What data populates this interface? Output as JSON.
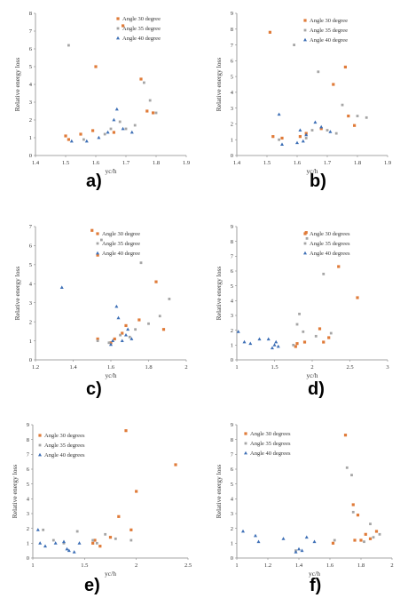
{
  "colors": {
    "s30": "#e07b39",
    "s35": "#a5a5a5",
    "s40": "#3d6fb6",
    "axis": "#888888"
  },
  "chart_data": [
    {
      "panel_label": "a)",
      "type": "scatter",
      "xlabel": "yc/h",
      "ylabel": "Relative energy loss",
      "xlim": [
        1.4,
        1.9
      ],
      "ylim": [
        0,
        8
      ],
      "xticks": [
        "1.4",
        "1.5",
        "1.6",
        "1.7",
        "1.8",
        "1.9"
      ],
      "yticks": [
        "0",
        "1",
        "2",
        "3",
        "4",
        "5",
        "6",
        "7",
        "8"
      ],
      "legend": [
        "Angle 30 degree",
        "Angle 35 degree",
        "Angle 40 degree"
      ],
      "series": [
        {
          "name": "Angle 30 degree",
          "points": [
            [
              1.5,
              1.1
            ],
            [
              1.51,
              0.9
            ],
            [
              1.55,
              1.2
            ],
            [
              1.59,
              1.4
            ],
            [
              1.6,
              5.0
            ],
            [
              1.66,
              1.3
            ],
            [
              1.69,
              7.3
            ],
            [
              1.75,
              4.3
            ],
            [
              1.77,
              2.5
            ],
            [
              1.79,
              2.4
            ]
          ]
        },
        {
          "name": "Angle 35 degree",
          "points": [
            [
              1.51,
              6.2
            ],
            [
              1.56,
              0.9
            ],
            [
              1.63,
              1.2
            ],
            [
              1.65,
              1.5
            ],
            [
              1.68,
              1.9
            ],
            [
              1.7,
              1.5
            ],
            [
              1.73,
              1.7
            ],
            [
              1.76,
              4.1
            ],
            [
              1.78,
              3.1
            ],
            [
              1.8,
              2.4
            ]
          ]
        },
        {
          "name": "Angle 40 degree",
          "points": [
            [
              1.52,
              0.8
            ],
            [
              1.57,
              0.8
            ],
            [
              1.61,
              1.0
            ],
            [
              1.64,
              1.3
            ],
            [
              1.66,
              2.0
            ],
            [
              1.67,
              2.6
            ],
            [
              1.69,
              1.5
            ],
            [
              1.72,
              1.3
            ]
          ]
        }
      ]
    },
    {
      "panel_label": "b)",
      "type": "scatter",
      "xlabel": "yc/h",
      "ylabel": "Relative energy loss",
      "xlim": [
        1.4,
        1.9
      ],
      "ylim": [
        0,
        9
      ],
      "xticks": [
        "1.4",
        "1.5",
        "1.6",
        "1.7",
        "1.8",
        "1.9"
      ],
      "yticks": [
        "0",
        "1",
        "2",
        "3",
        "4",
        "5",
        "6",
        "7",
        "8",
        "9"
      ],
      "legend": [
        "Angle 30 degree",
        "Angle 35 degree",
        "Angle 40 degree"
      ],
      "series": [
        {
          "name": "Angle 30 degree",
          "points": [
            [
              1.51,
              7.8
            ],
            [
              1.52,
              1.2
            ],
            [
              1.55,
              1.1
            ],
            [
              1.61,
              1.2
            ],
            [
              1.63,
              1.4
            ],
            [
              1.68,
              1.7
            ],
            [
              1.72,
              4.5
            ],
            [
              1.76,
              5.6
            ],
            [
              1.77,
              2.5
            ],
            [
              1.79,
              1.9
            ]
          ]
        },
        {
          "name": "Angle 35 degree",
          "points": [
            [
              1.54,
              1.0
            ],
            [
              1.59,
              7.0
            ],
            [
              1.63,
              1.1
            ],
            [
              1.65,
              1.6
            ],
            [
              1.67,
              5.3
            ],
            [
              1.7,
              1.6
            ],
            [
              1.73,
              1.4
            ],
            [
              1.75,
              3.2
            ],
            [
              1.8,
              2.5
            ],
            [
              1.83,
              2.4
            ]
          ]
        },
        {
          "name": "Angle 40 degree",
          "points": [
            [
              1.54,
              2.6
            ],
            [
              1.55,
              0.7
            ],
            [
              1.6,
              0.8
            ],
            [
              1.61,
              1.6
            ],
            [
              1.62,
              0.9
            ],
            [
              1.63,
              1.3
            ],
            [
              1.66,
              2.1
            ],
            [
              1.68,
              1.8
            ],
            [
              1.71,
              1.5
            ]
          ]
        }
      ]
    },
    {
      "panel_label": "c)",
      "type": "scatter",
      "xlabel": "yc/h",
      "ylabel": "Relative energy loss",
      "xlim": [
        1.2,
        2.0
      ],
      "ylim": [
        0,
        7
      ],
      "xticks": [
        "1.2",
        "1.4",
        "1.6",
        "1.8",
        "2"
      ],
      "yticks": [
        "0",
        "1",
        "2",
        "3",
        "4",
        "5",
        "6",
        "7"
      ],
      "legend": [
        "Angle 30 degree",
        "Angle 35 degree",
        "Angle 40 degree"
      ],
      "series": [
        {
          "name": "Angle 30 degree",
          "points": [
            [
              1.5,
              6.8
            ],
            [
              1.53,
              5.5
            ],
            [
              1.53,
              1.1
            ],
            [
              1.6,
              0.9
            ],
            [
              1.62,
              1.1
            ],
            [
              1.66,
              1.4
            ],
            [
              1.68,
              1.8
            ],
            [
              1.75,
              2.1
            ],
            [
              1.84,
              4.1
            ],
            [
              1.88,
              1.6
            ]
          ]
        },
        {
          "name": "Angle 35 degree",
          "points": [
            [
              1.53,
              1.0
            ],
            [
              1.55,
              6.3
            ],
            [
              1.59,
              0.9
            ],
            [
              1.65,
              1.3
            ],
            [
              1.7,
              1.2
            ],
            [
              1.73,
              1.6
            ],
            [
              1.76,
              5.1
            ],
            [
              1.8,
              1.9
            ],
            [
              1.86,
              2.3
            ],
            [
              1.91,
              3.2
            ]
          ]
        },
        {
          "name": "Angle 40 degree",
          "points": [
            [
              1.34,
              3.8
            ],
            [
              1.6,
              0.8
            ],
            [
              1.61,
              1.0
            ],
            [
              1.63,
              2.8
            ],
            [
              1.64,
              2.2
            ],
            [
              1.66,
              1.0
            ],
            [
              1.68,
              1.3
            ],
            [
              1.69,
              1.6
            ],
            [
              1.71,
              1.1
            ]
          ]
        }
      ]
    },
    {
      "panel_label": "d)",
      "type": "scatter",
      "xlabel": "yc/h",
      "ylabel": "Relative energy loss",
      "xlim": [
        1,
        3
      ],
      "ylim": [
        0,
        9
      ],
      "xticks": [
        "1",
        "1.5",
        "2",
        "2.5",
        "3"
      ],
      "yticks": [
        "0",
        "1",
        "2",
        "3",
        "4",
        "5",
        "6",
        "7",
        "8",
        "9"
      ],
      "legend": [
        "Angle 30 degrees",
        "Angle 35 degrees",
        "Angle 40 degrees"
      ],
      "series": [
        {
          "name": "Angle 30 degrees",
          "points": [
            [
              1.78,
              0.9
            ],
            [
              1.8,
              1.1
            ],
            [
              1.9,
              1.2
            ],
            [
              1.92,
              8.6
            ],
            [
              2.1,
              2.1
            ],
            [
              2.15,
              1.2
            ],
            [
              2.22,
              1.5
            ],
            [
              2.35,
              6.3
            ],
            [
              2.6,
              4.2
            ]
          ]
        },
        {
          "name": "Angle 35 degrees",
          "points": [
            [
              1.75,
              1.0
            ],
            [
              1.8,
              2.4
            ],
            [
              1.83,
              3.1
            ],
            [
              1.88,
              1.9
            ],
            [
              1.93,
              8.2
            ],
            [
              2.05,
              1.6
            ],
            [
              2.15,
              5.8
            ],
            [
              2.25,
              1.8
            ]
          ]
        },
        {
          "name": "Angle 40 degrees",
          "points": [
            [
              1.02,
              1.9
            ],
            [
              1.1,
              1.2
            ],
            [
              1.18,
              1.1
            ],
            [
              1.3,
              1.4
            ],
            [
              1.42,
              1.4
            ],
            [
              1.47,
              0.8
            ],
            [
              1.5,
              1.0
            ],
            [
              1.52,
              1.2
            ],
            [
              1.55,
              0.9
            ]
          ]
        }
      ]
    },
    {
      "panel_label": "e)",
      "type": "scatter",
      "xlabel": "yc/h",
      "ylabel": "Relative energy loss",
      "xlim": [
        1,
        2.5
      ],
      "ylim": [
        0,
        9
      ],
      "xticks": [
        "1",
        "1.5",
        "2",
        "2.5"
      ],
      "yticks": [
        "0",
        "1",
        "2",
        "3",
        "4",
        "5",
        "6",
        "7",
        "8",
        "9"
      ],
      "legend": [
        "Angle 30 degrees",
        "Angle 35 degrees",
        "Angle 40 degrees"
      ],
      "series": [
        {
          "name": "Angle 30 degrees",
          "points": [
            [
              1.58,
              1.0
            ],
            [
              1.6,
              1.2
            ],
            [
              1.65,
              0.8
            ],
            [
              1.75,
              1.4
            ],
            [
              1.83,
              2.8
            ],
            [
              1.9,
              8.6
            ],
            [
              1.95,
              1.9
            ],
            [
              2.0,
              4.5
            ],
            [
              2.38,
              6.3
            ]
          ]
        },
        {
          "name": "Angle 35 degrees",
          "points": [
            [
              1.1,
              1.9
            ],
            [
              1.2,
              1.2
            ],
            [
              1.3,
              1.0
            ],
            [
              1.43,
              1.8
            ],
            [
              1.58,
              1.2
            ],
            [
              1.62,
              1.0
            ],
            [
              1.7,
              1.6
            ],
            [
              1.8,
              1.3
            ],
            [
              1.95,
              1.2
            ]
          ]
        },
        {
          "name": "Angle 40 degrees",
          "points": [
            [
              1.05,
              1.9
            ],
            [
              1.07,
              1.0
            ],
            [
              1.12,
              0.8
            ],
            [
              1.22,
              1.0
            ],
            [
              1.3,
              1.1
            ],
            [
              1.33,
              0.6
            ],
            [
              1.35,
              0.5
            ],
            [
              1.4,
              0.4
            ],
            [
              1.45,
              1.0
            ]
          ]
        }
      ]
    },
    {
      "panel_label": "f)",
      "type": "scatter",
      "xlabel": "yc/h",
      "ylabel": "Relative energy loss",
      "xlim": [
        1,
        2
      ],
      "ylim": [
        0,
        9
      ],
      "xticks": [
        "1",
        "1.2",
        "1.4",
        "1.6",
        "1.8",
        "2"
      ],
      "yticks": [
        "0",
        "1",
        "2",
        "3",
        "4",
        "5",
        "6",
        "7",
        "8",
        "9"
      ],
      "legend": [
        "Angle 30 degrees",
        "Angle 35 degrees",
        "Angle 40 degrees"
      ],
      "series": [
        {
          "name": "Angle 30 degrees",
          "points": [
            [
              1.62,
              1.0
            ],
            [
              1.7,
              8.3
            ],
            [
              1.75,
              3.6
            ],
            [
              1.76,
              1.2
            ],
            [
              1.78,
              2.9
            ],
            [
              1.8,
              1.2
            ],
            [
              1.83,
              1.6
            ],
            [
              1.86,
              1.3
            ],
            [
              1.9,
              1.8
            ]
          ]
        },
        {
          "name": "Angle 35 degrees",
          "points": [
            [
              1.38,
              0.5
            ],
            [
              1.63,
              1.2
            ],
            [
              1.71,
              6.1
            ],
            [
              1.74,
              5.6
            ],
            [
              1.75,
              3.1
            ],
            [
              1.82,
              1.1
            ],
            [
              1.86,
              2.3
            ],
            [
              1.88,
              1.4
            ],
            [
              1.92,
              1.6
            ]
          ]
        },
        {
          "name": "Angle 40 degrees",
          "points": [
            [
              1.04,
              1.8
            ],
            [
              1.12,
              1.5
            ],
            [
              1.14,
              1.1
            ],
            [
              1.3,
              1.3
            ],
            [
              1.38,
              0.4
            ],
            [
              1.4,
              0.6
            ],
            [
              1.42,
              0.5
            ],
            [
              1.45,
              1.4
            ],
            [
              1.5,
              1.1
            ]
          ]
        }
      ]
    }
  ]
}
